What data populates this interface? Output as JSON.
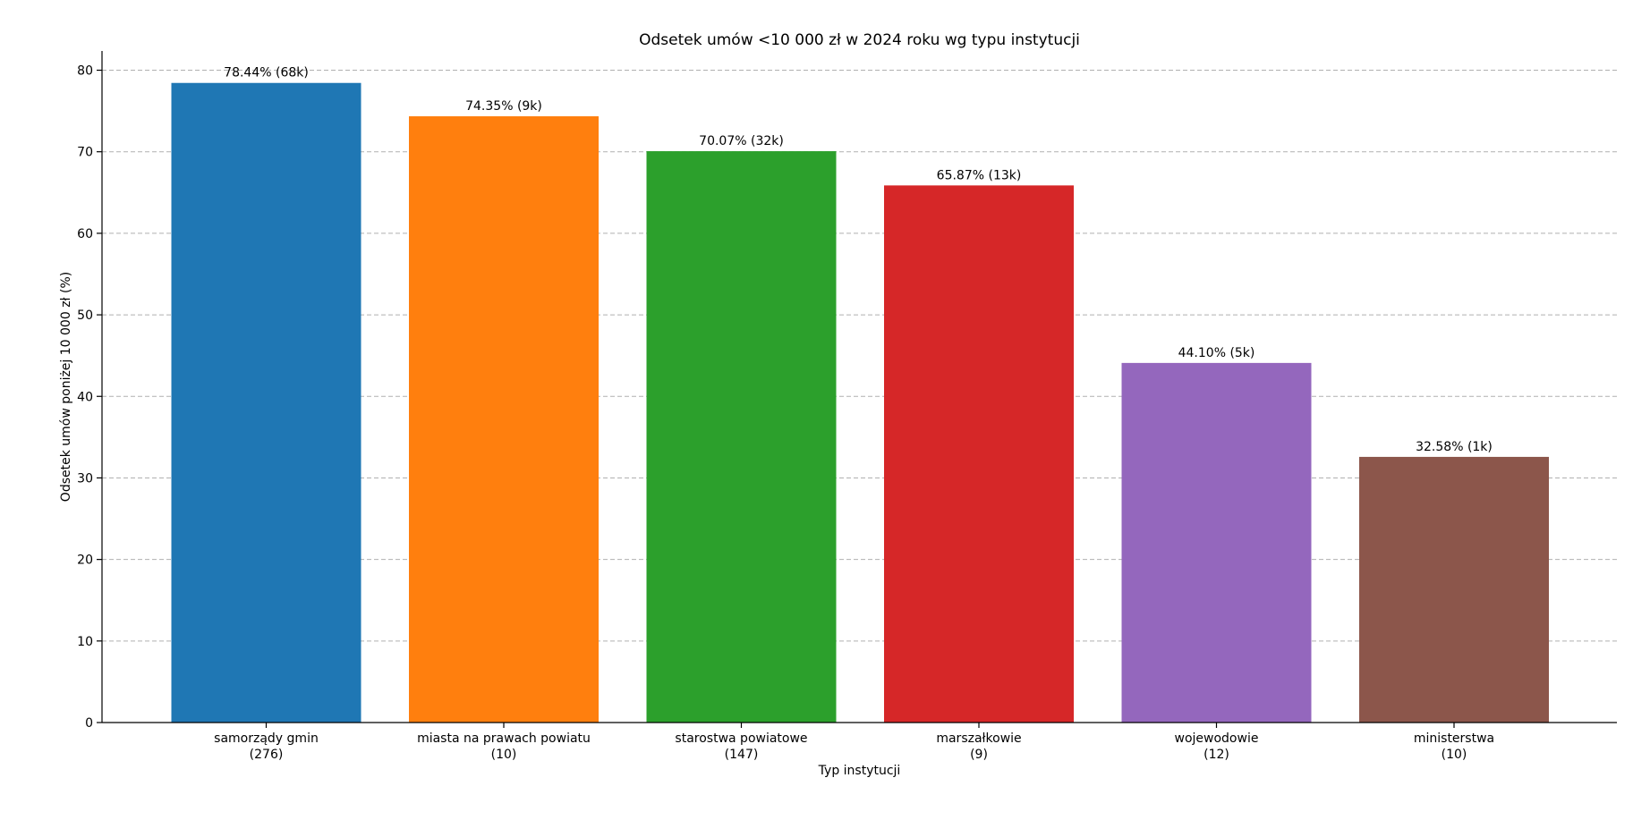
{
  "chart_data": {
    "type": "bar",
    "title": "Odsetek umów <10 000 zł w 2024 roku wg typu instytucji",
    "xlabel": "Typ instytucji",
    "ylabel": "Odsetek umów poniżej 10 000 zł (%)",
    "ylim": [
      0,
      82.36
    ],
    "yticks": [
      "0",
      "10",
      "20",
      "30",
      "40",
      "50",
      "60",
      "70",
      "80"
    ],
    "grid": "y-dashed",
    "categories": [
      {
        "name": "samorządy gmin",
        "count": "(276)"
      },
      {
        "name": "miasta na prawach powiatu",
        "count": "(10)"
      },
      {
        "name": "starostwa powiatowe",
        "count": "(147)"
      },
      {
        "name": "marszałkowie",
        "count": "(9)"
      },
      {
        "name": "wojewodowie",
        "count": "(12)"
      },
      {
        "name": "ministerstwa",
        "count": "(10)"
      }
    ],
    "values": [
      78.44,
      74.35,
      70.07,
      65.87,
      44.1,
      32.58
    ],
    "data_labels": [
      "78.44% (68k)",
      "74.35% (9k)",
      "70.07% (32k)",
      "65.87% (13k)",
      "44.10% (5k)",
      "32.58% (1k)"
    ],
    "colors": [
      "#1f77b4",
      "#ff7f0e",
      "#2ca02c",
      "#d62728",
      "#9467bd",
      "#8c564b"
    ]
  }
}
